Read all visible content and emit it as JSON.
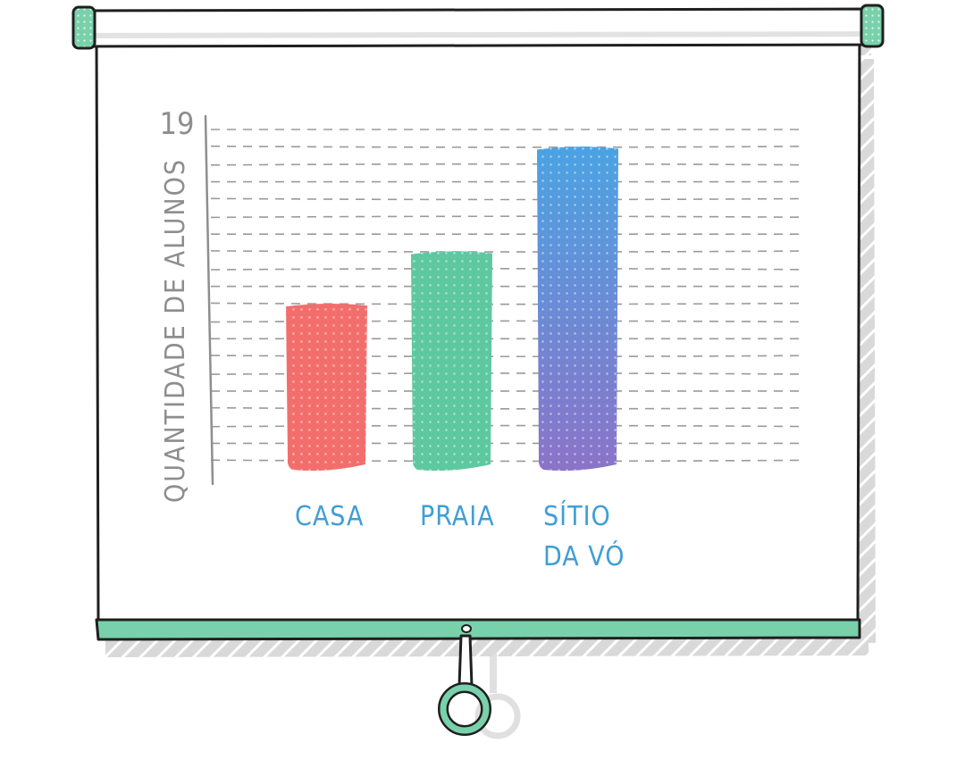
{
  "chart_data": {
    "type": "bar",
    "ylabel": "QUANTIDADE DE ALUNOS",
    "ytick_max_label": "19",
    "ylim": [
      0,
      19
    ],
    "categories": [
      {
        "lines": [
          "CASA"
        ]
      },
      {
        "lines": [
          "PRAIA"
        ]
      },
      {
        "lines": [
          "SÍTIO",
          "DA VÓ"
        ]
      }
    ],
    "values": [
      9,
      12,
      18
    ],
    "grid": true,
    "colors": {
      "bars": [
        "#f26e6c",
        "#5ec8a0",
        "#5b8fd8"
      ],
      "bar3_top": "#4aa3e3",
      "bar3_bottom": "#8b73c8",
      "category_labels": "#3f9fd6",
      "axis": "#8e8e8e",
      "frame_accent": "#79d1ab"
    }
  }
}
